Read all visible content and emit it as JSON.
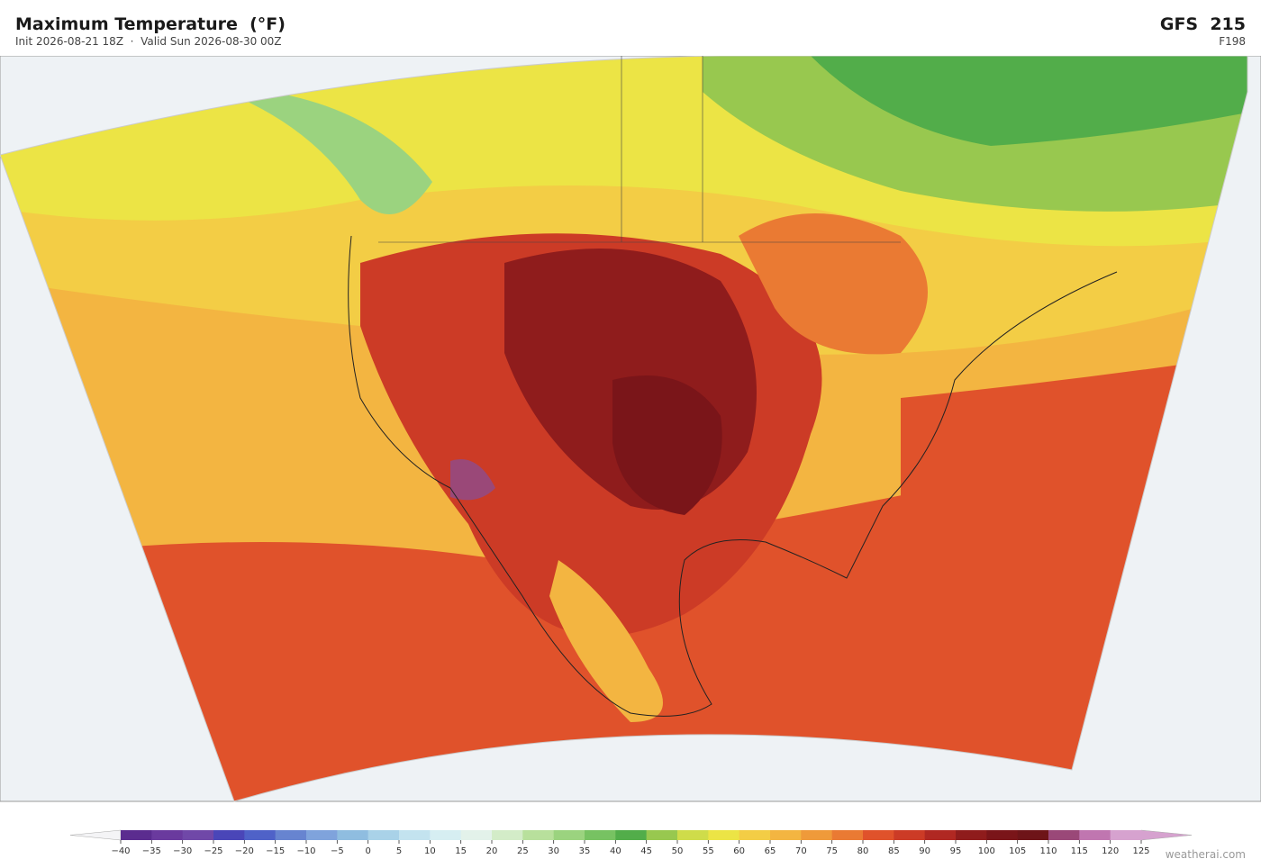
{
  "header": {
    "title": "Maximum Temperature  (°F)",
    "subtitle": "Init 2026-08-21 18Z  ·  Valid Sun 2026-08-30 00Z",
    "model": "GFS  215",
    "forecast_hour": "F198"
  },
  "colorbar": {
    "ticks": [
      {
        "value": -40,
        "label": "−40"
      },
      {
        "value": -35,
        "label": "−35"
      },
      {
        "value": -30,
        "label": "−30"
      },
      {
        "value": -25,
        "label": "−25"
      },
      {
        "value": -20,
        "label": "−20"
      },
      {
        "value": -15,
        "label": "−15"
      },
      {
        "value": -10,
        "label": "−10"
      },
      {
        "value": -5,
        "label": "−5"
      },
      0,
      5,
      10,
      15,
      20,
      25,
      30,
      35,
      40,
      45,
      50,
      55,
      60,
      65,
      70,
      75,
      80,
      85,
      90,
      95,
      100,
      105,
      110,
      115,
      120,
      125
    ],
    "colors": [
      "#5b2c8f",
      "#6a3a9e",
      "#7048a8",
      "#4a46b8",
      "#4f62c8",
      "#6784d0",
      "#7fa3dc",
      "#8fbde0",
      "#a9d2e8",
      "#c3e3ef",
      "#d6eef2",
      "#e3f2ea",
      "#d3ecc8",
      "#b8e09c",
      "#9bd37f",
      "#77c262",
      "#52ad4a",
      "#98c84f",
      "#cfdc4a",
      "#ece445",
      "#f3cd45",
      "#f3b541",
      "#ef9a3a",
      "#ea7a33",
      "#e0522b",
      "#cc3b26",
      "#b02822",
      "#8f1c1c",
      "#7a1519",
      "#6e1418",
      "#9a4878",
      "#c076b0",
      "#d6a2cf"
    ],
    "under_color": "#f4f4f6",
    "over_color": "#d6a2cf"
  },
  "credit": "weatherai.com"
}
